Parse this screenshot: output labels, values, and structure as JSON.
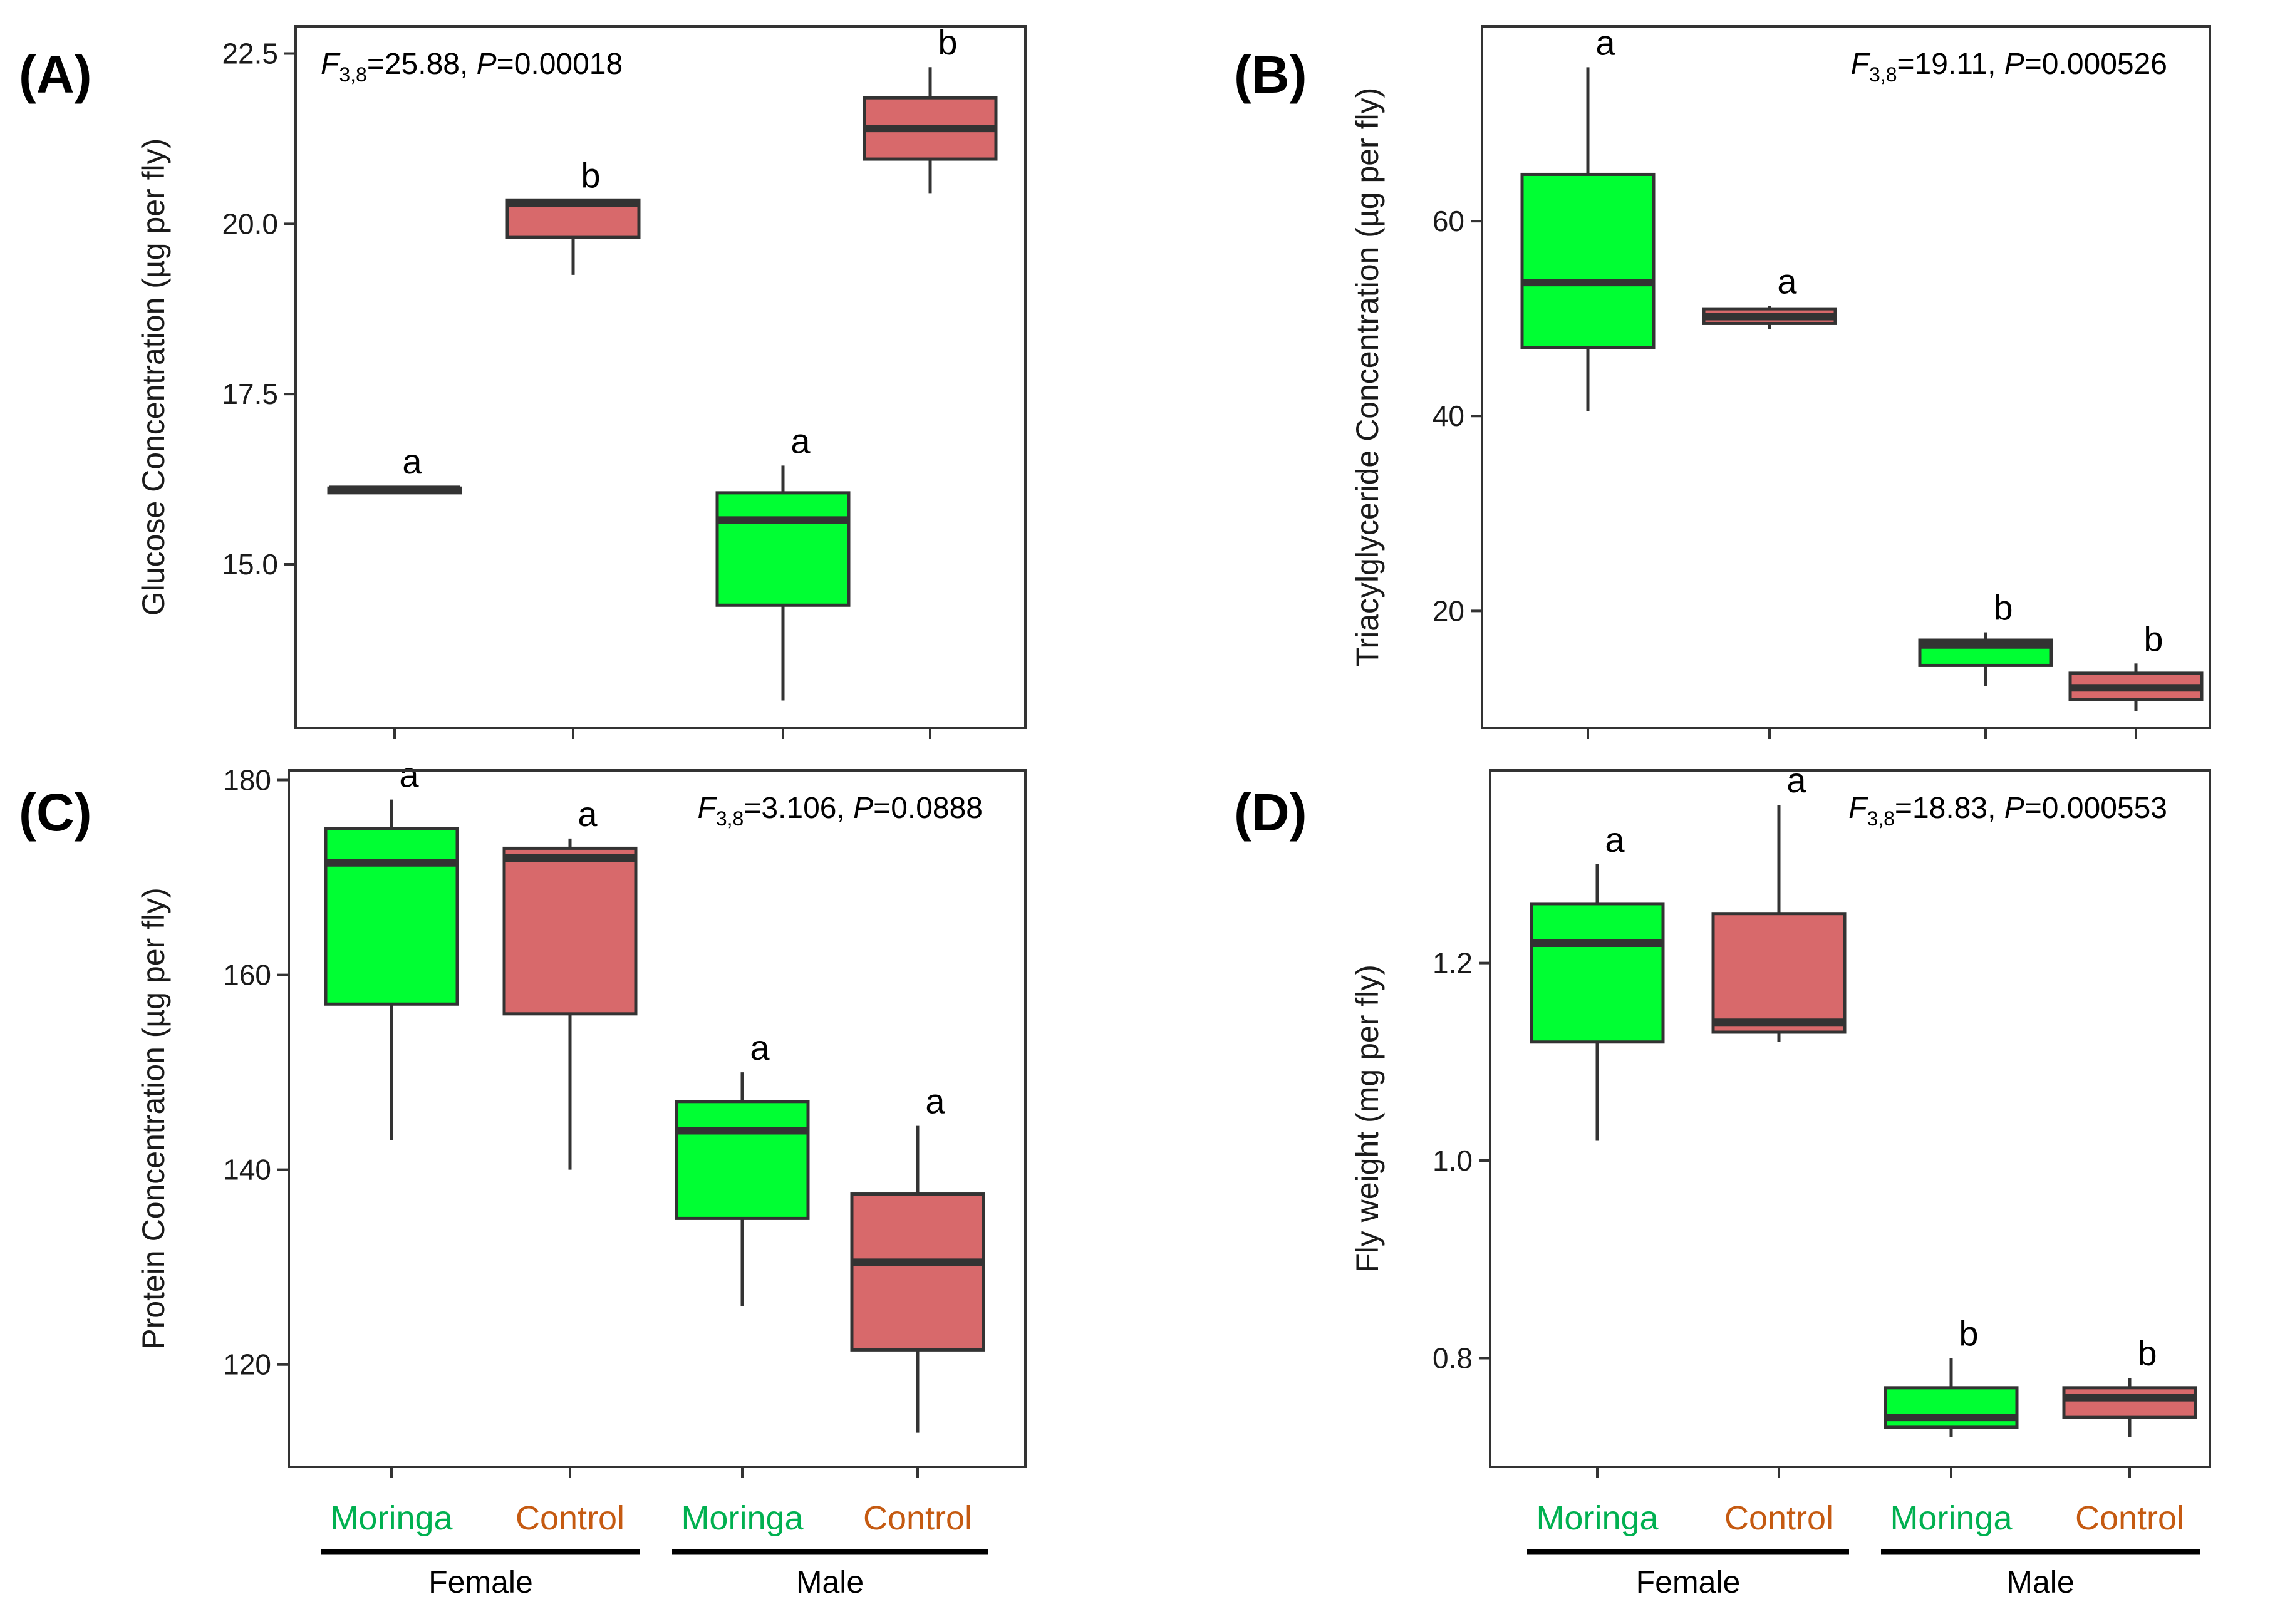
{
  "colors": {
    "moringa_fill": "#00FF33",
    "control_fill": "#D8696B",
    "moringa_label": "#00B050",
    "control_label": "#C55A11",
    "box_stroke": "#333333"
  },
  "x_axis": {
    "categories": [
      "Moringa",
      "Control",
      "Moringa",
      "Control"
    ],
    "groups": [
      {
        "label": "Female",
        "span": [
          0,
          1
        ]
      },
      {
        "label": "Male",
        "span": [
          2,
          3
        ]
      }
    ]
  },
  "chart_data": [
    {
      "type": "box",
      "panel": "(A)",
      "title": "",
      "ylabel": "Glucose Concentration (µg per fly)",
      "ylim": [
        12.6,
        22.9
      ],
      "yticks": [
        "15.0",
        "17.5",
        "20.0",
        "22.5"
      ],
      "stat": {
        "f": "F",
        "sub": "3,8",
        "f_value": "=25.88, ",
        "p": "P",
        "p_value": "=0.00018"
      },
      "stat_anchor": "top-left",
      "boxes": [
        {
          "category": "Moringa",
          "group": "Female",
          "min": 16.05,
          "q1": 16.05,
          "median": 16.1,
          "q3": 16.12,
          "max": 16.15,
          "letter": "a"
        },
        {
          "category": "Control",
          "group": "Female",
          "min": 19.25,
          "q1": 19.8,
          "median": 20.3,
          "q3": 20.35,
          "max": 20.35,
          "letter": "b"
        },
        {
          "category": "Moringa",
          "group": "Male",
          "min": 13.0,
          "q1": 14.4,
          "median": 15.65,
          "q3": 16.05,
          "max": 16.45,
          "letter": "a"
        },
        {
          "category": "Control",
          "group": "Male",
          "min": 20.45,
          "q1": 20.95,
          "median": 21.4,
          "q3": 21.85,
          "max": 22.3,
          "letter": "b"
        }
      ]
    },
    {
      "type": "box",
      "panel": "(B)",
      "title": "",
      "ylabel": "Triacylglyceride Concentration (µg per fly)",
      "ylim": [
        8,
        80
      ],
      "yticks": [
        "20",
        "40",
        "60"
      ],
      "stat": {
        "f": "F",
        "sub": "3,8",
        "f_value": "=19.11, ",
        "p": "P",
        "p_value": "=0.000526"
      },
      "stat_anchor": "top-right",
      "boxes": [
        {
          "category": "Moringa",
          "group": "Female",
          "min": 40.5,
          "q1": 47,
          "median": 53.7,
          "q3": 64.8,
          "max": 75.8,
          "letter": "a"
        },
        {
          "category": "Control",
          "group": "Female",
          "min": 48.9,
          "q1": 49.5,
          "median": 50.2,
          "q3": 51.0,
          "max": 51.3,
          "letter": "a"
        },
        {
          "category": "Moringa",
          "group": "Male",
          "min": 12.3,
          "q1": 14.4,
          "median": 16.5,
          "q3": 17.0,
          "max": 17.8,
          "letter": "b"
        },
        {
          "category": "Control",
          "group": "Male",
          "min": 9.7,
          "q1": 10.9,
          "median": 12.1,
          "q3": 13.6,
          "max": 14.6,
          "letter": "b"
        }
      ]
    },
    {
      "type": "box",
      "panel": "(C)",
      "title": "",
      "ylabel": "Protein Concentration (µg per fly)",
      "ylim": [
        109.5,
        181
      ],
      "yticks": [
        "120",
        "140",
        "160",
        "180"
      ],
      "stat": {
        "f": "F",
        "sub": "3,8",
        "f_value": "=3.106, ",
        "p": "P",
        "p_value": "=0.0888"
      },
      "stat_anchor": "top-right",
      "boxes": [
        {
          "category": "Moringa",
          "group": "Female",
          "min": 143,
          "q1": 157,
          "median": 171.5,
          "q3": 175,
          "max": 178,
          "letter": "a"
        },
        {
          "category": "Control",
          "group": "Female",
          "min": 140,
          "q1": 156,
          "median": 172,
          "q3": 173,
          "max": 174,
          "letter": "a"
        },
        {
          "category": "Moringa",
          "group": "Male",
          "min": 126,
          "q1": 135,
          "median": 144,
          "q3": 147,
          "max": 150,
          "letter": "a"
        },
        {
          "category": "Control",
          "group": "Male",
          "min": 113,
          "q1": 121.5,
          "median": 130.5,
          "q3": 137.5,
          "max": 144.5,
          "letter": "a"
        }
      ]
    },
    {
      "type": "box",
      "panel": "(D)",
      "title": "",
      "ylabel": "Fly weight (mg per fly)",
      "ylim": [
        0.69,
        1.395
      ],
      "yticks": [
        "0.8",
        "1.0",
        "1.2"
      ],
      "stat": {
        "f": "F",
        "sub": "3,8",
        "f_value": "=18.83, ",
        "p": "P",
        "p_value": "=0.000553"
      },
      "stat_anchor": "top-right",
      "boxes": [
        {
          "category": "Moringa",
          "group": "Female",
          "min": 1.02,
          "q1": 1.12,
          "median": 1.22,
          "q3": 1.26,
          "max": 1.3,
          "letter": "a"
        },
        {
          "category": "Control",
          "group": "Female",
          "min": 1.12,
          "q1": 1.13,
          "median": 1.14,
          "q3": 1.25,
          "max": 1.36,
          "letter": "a"
        },
        {
          "category": "Moringa",
          "group": "Male",
          "min": 0.72,
          "q1": 0.73,
          "median": 0.74,
          "q3": 0.77,
          "max": 0.8,
          "letter": "b"
        },
        {
          "category": "Control",
          "group": "Male",
          "min": 0.72,
          "q1": 0.74,
          "median": 0.76,
          "q3": 0.77,
          "max": 0.78,
          "letter": "b"
        }
      ]
    }
  ]
}
